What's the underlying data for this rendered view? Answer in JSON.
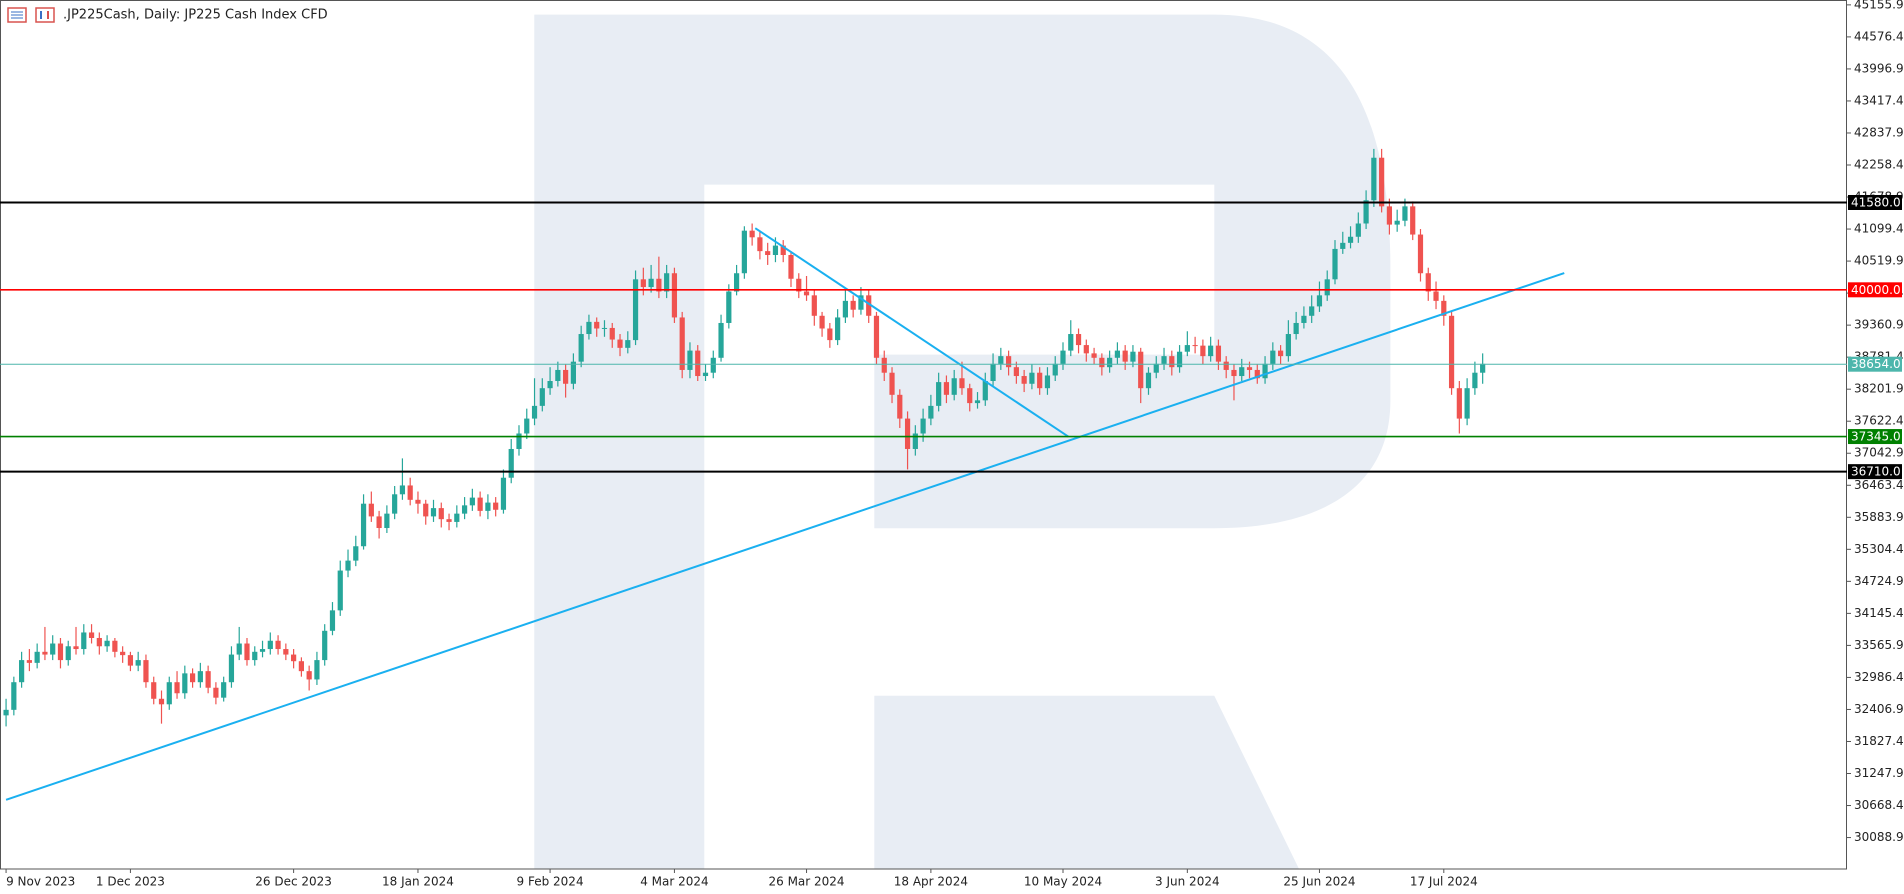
{
  "chart_data": {
    "type": "candlestick",
    "title": ".JP225Cash, Daily:  JP225 Cash Index CFD",
    "up_color": "#26a69a",
    "down_color": "#ef5350",
    "trend_color": "#1ab0f0",
    "ylim": [
      29520,
      45244
    ],
    "yticks": [
      45155.9,
      44576.4,
      43996.9,
      43417.4,
      42837.9,
      42258.4,
      41678.9,
      41099.4,
      40519.9,
      39940.4,
      39360.9,
      38781.4,
      38201.9,
      37622.4,
      37042.9,
      36463.4,
      35883.9,
      35304.4,
      34724.9,
      34145.4,
      33565.9,
      32986.4,
      32406.9,
      31827.4,
      31247.9,
      30668.4,
      30088.9
    ],
    "levels": [
      {
        "value": 41580,
        "label": "41580.0",
        "color": "#000000"
      },
      {
        "value": 40000,
        "label": "40000.0",
        "color": "#ff0000"
      },
      {
        "value": 38654,
        "label": "38654.0",
        "color": "#4db6ac"
      },
      {
        "value": 37345,
        "label": "37345.0",
        "color": "#008000"
      },
      {
        "value": 36710,
        "label": "36710.0",
        "color": "#000000"
      }
    ],
    "trendlines": [
      [
        [
          0,
          30772
        ],
        [
          200.5,
          40303
        ]
      ],
      [
        [
          96.4,
          41115
        ],
        [
          136.7,
          37343
        ]
      ]
    ],
    "categories": [
      "9 Nov 2023",
      null,
      null,
      null,
      null,
      null,
      null,
      null,
      null,
      null,
      null,
      null,
      null,
      null,
      null,
      null,
      "1 Dec 2023",
      null,
      null,
      null,
      null,
      null,
      null,
      null,
      null,
      null,
      null,
      null,
      null,
      null,
      null,
      null,
      null,
      null,
      null,
      null,
      null,
      "26 Dec 2023",
      null,
      null,
      null,
      null,
      null,
      null,
      null,
      null,
      null,
      null,
      null,
      null,
      null,
      null,
      null,
      "18 Jan 2024",
      null,
      null,
      null,
      null,
      null,
      null,
      null,
      null,
      null,
      null,
      null,
      null,
      null,
      null,
      null,
      null,
      "9 Feb 2024",
      null,
      null,
      null,
      null,
      null,
      null,
      null,
      null,
      null,
      null,
      null,
      null,
      null,
      null,
      null,
      "4 Mar 2024",
      null,
      null,
      null,
      null,
      null,
      null,
      null,
      null,
      null,
      null,
      null,
      null,
      null,
      null,
      null,
      null,
      "26 Mar 2024",
      null,
      null,
      null,
      null,
      null,
      null,
      null,
      null,
      null,
      null,
      null,
      null,
      null,
      null,
      null,
      "18 Apr 2024",
      null,
      null,
      null,
      null,
      null,
      null,
      null,
      null,
      null,
      null,
      null,
      null,
      null,
      null,
      null,
      null,
      "10 May 2024",
      null,
      null,
      null,
      null,
      null,
      null,
      null,
      null,
      null,
      null,
      null,
      null,
      null,
      null,
      null,
      "3 Jun 2024",
      null,
      null,
      null,
      null,
      null,
      null,
      null,
      null,
      null,
      null,
      null,
      null,
      null,
      null,
      null,
      null,
      "25 Jun 2024",
      null,
      null,
      null,
      null,
      null,
      null,
      null,
      null,
      null,
      null,
      null,
      null,
      null,
      null,
      null,
      "17 Jul 2024",
      null,
      null,
      null,
      null,
      null
    ],
    "ohlc": [
      [
        32300,
        32600,
        32100,
        32400
      ],
      [
        32400,
        33000,
        32300,
        32900
      ],
      [
        32900,
        33450,
        32800,
        33300
      ],
      [
        33300,
        33500,
        33100,
        33250
      ],
      [
        33250,
        33600,
        33150,
        33450
      ],
      [
        33450,
        33900,
        33300,
        33400
      ],
      [
        33400,
        33750,
        33300,
        33600
      ],
      [
        33600,
        33700,
        33150,
        33300
      ],
      [
        33300,
        33650,
        33200,
        33550
      ],
      [
        33550,
        33900,
        33400,
        33500
      ],
      [
        33500,
        33950,
        33400,
        33800
      ],
      [
        33800,
        33950,
        33600,
        33700
      ],
      [
        33700,
        33800,
        33400,
        33550
      ],
      [
        33550,
        33750,
        33450,
        33650
      ],
      [
        33650,
        33700,
        33350,
        33450
      ],
      [
        33450,
        33550,
        33250,
        33390
      ],
      [
        33390,
        33450,
        33100,
        33200
      ],
      [
        33200,
        33450,
        33100,
        33300
      ],
      [
        33300,
        33400,
        32800,
        32900
      ],
      [
        32900,
        33000,
        32500,
        32600
      ],
      [
        32600,
        32750,
        32150,
        32500
      ],
      [
        32500,
        33000,
        32400,
        32900
      ],
      [
        32900,
        33100,
        32600,
        32700
      ],
      [
        32700,
        33200,
        32600,
        33060
      ],
      [
        33060,
        33150,
        32800,
        32900
      ],
      [
        32900,
        33250,
        32800,
        33100
      ],
      [
        33100,
        33200,
        32700,
        32800
      ],
      [
        32800,
        32900,
        32500,
        32620
      ],
      [
        32620,
        33000,
        32550,
        32900
      ],
      [
        32900,
        33550,
        32800,
        33400
      ],
      [
        33400,
        33900,
        33300,
        33600
      ],
      [
        33600,
        33700,
        33200,
        33300
      ],
      [
        33300,
        33550,
        33200,
        33450
      ],
      [
        33450,
        33650,
        33350,
        33500
      ],
      [
        33500,
        33800,
        33400,
        33650
      ],
      [
        33650,
        33750,
        33400,
        33500
      ],
      [
        33500,
        33600,
        33300,
        33400
      ],
      [
        33400,
        33500,
        33150,
        33280
      ],
      [
        33280,
        33350,
        33000,
        33100
      ],
      [
        33100,
        33200,
        32750,
        32950
      ],
      [
        32950,
        33450,
        32850,
        33300
      ],
      [
        33300,
        33950,
        33200,
        33830
      ],
      [
        33830,
        34350,
        33750,
        34200
      ],
      [
        34200,
        35100,
        34100,
        34920
      ],
      [
        34920,
        35300,
        34800,
        35100
      ],
      [
        35100,
        35550,
        35000,
        35360
      ],
      [
        35360,
        36300,
        35300,
        36130
      ],
      [
        36130,
        36350,
        35800,
        35900
      ],
      [
        35900,
        36000,
        35500,
        35690
      ],
      [
        35690,
        36100,
        35600,
        35950
      ],
      [
        35950,
        36450,
        35850,
        36300
      ],
      [
        36300,
        36950,
        36200,
        36460
      ],
      [
        36460,
        36600,
        36100,
        36200
      ],
      [
        36200,
        36350,
        35950,
        36130
      ],
      [
        36130,
        36200,
        35750,
        35900
      ],
      [
        35900,
        36200,
        35800,
        36050
      ],
      [
        36050,
        36150,
        35700,
        35850
      ],
      [
        35850,
        35950,
        35650,
        35800
      ],
      [
        35800,
        36100,
        35700,
        35950
      ],
      [
        35950,
        36250,
        35850,
        36100
      ],
      [
        36100,
        36400,
        36000,
        36240
      ],
      [
        36240,
        36350,
        35900,
        36000
      ],
      [
        36000,
        36300,
        35850,
        36150
      ],
      [
        36150,
        36250,
        35900,
        36020
      ],
      [
        36020,
        36750,
        35950,
        36600
      ],
      [
        36600,
        37300,
        36500,
        37120
      ],
      [
        37120,
        37550,
        37000,
        37400
      ],
      [
        37400,
        37850,
        37300,
        37670
      ],
      [
        37670,
        38400,
        37550,
        37900
      ],
      [
        37900,
        38400,
        37800,
        38220
      ],
      [
        38220,
        38600,
        38100,
        38350
      ],
      [
        38350,
        38700,
        38250,
        38550
      ],
      [
        38550,
        38650,
        38050,
        38300
      ],
      [
        38300,
        38850,
        38200,
        38700
      ],
      [
        38700,
        39350,
        38600,
        39200
      ],
      [
        39200,
        39550,
        39100,
        39420
      ],
      [
        39420,
        39500,
        39150,
        39300
      ],
      [
        39300,
        39450,
        39150,
        39310
      ],
      [
        39310,
        39400,
        38950,
        39100
      ],
      [
        39100,
        39200,
        38800,
        38950
      ],
      [
        38950,
        39250,
        38850,
        39090
      ],
      [
        39090,
        40350,
        39000,
        40190
      ],
      [
        40190,
        40400,
        39900,
        40050
      ],
      [
        40050,
        40450,
        39950,
        40200
      ],
      [
        40200,
        40600,
        39850,
        39970
      ],
      [
        39970,
        40450,
        39850,
        40300
      ],
      [
        40300,
        40400,
        39400,
        39500
      ],
      [
        39500,
        39600,
        38400,
        38550
      ],
      [
        38550,
        39050,
        38400,
        38900
      ],
      [
        38900,
        39000,
        38350,
        38440
      ],
      [
        38440,
        38650,
        38350,
        38500
      ],
      [
        38500,
        38900,
        38400,
        38770
      ],
      [
        38770,
        39550,
        38700,
        39400
      ],
      [
        39400,
        40100,
        39300,
        39970
      ],
      [
        39970,
        40450,
        39900,
        40300
      ],
      [
        40300,
        41150,
        40200,
        41070
      ],
      [
        41070,
        41200,
        40800,
        40950
      ],
      [
        40950,
        41050,
        40550,
        40700
      ],
      [
        40700,
        40850,
        40450,
        40630
      ],
      [
        40630,
        40950,
        40500,
        40800
      ],
      [
        40800,
        40900,
        40500,
        40630
      ],
      [
        40630,
        40700,
        40050,
        40200
      ],
      [
        40200,
        40300,
        39850,
        39970
      ],
      [
        39970,
        40250,
        39800,
        39900
      ],
      [
        39900,
        40000,
        39350,
        39530
      ],
      [
        39530,
        39600,
        39150,
        39300
      ],
      [
        39300,
        39400,
        38950,
        39090
      ],
      [
        39090,
        39650,
        39000,
        39500
      ],
      [
        39500,
        40000,
        39400,
        39800
      ],
      [
        39800,
        39900,
        39500,
        39640
      ],
      [
        39640,
        40050,
        39550,
        39900
      ],
      [
        39900,
        40000,
        39400,
        39530
      ],
      [
        39530,
        39600,
        38650,
        38770
      ],
      [
        38770,
        38900,
        38350,
        38500
      ],
      [
        38500,
        38600,
        37950,
        38100
      ],
      [
        38100,
        38200,
        37500,
        37670
      ],
      [
        37670,
        37800,
        36750,
        37120
      ],
      [
        37120,
        37550,
        37000,
        37400
      ],
      [
        37400,
        37850,
        37250,
        37670
      ],
      [
        37670,
        38100,
        37550,
        37900
      ],
      [
        37900,
        38500,
        37800,
        38330
      ],
      [
        38330,
        38450,
        37950,
        38100
      ],
      [
        38100,
        38550,
        38000,
        38400
      ],
      [
        38400,
        38700,
        38100,
        38220
      ],
      [
        38220,
        38300,
        37800,
        37950
      ],
      [
        37950,
        38150,
        37850,
        38000
      ],
      [
        38000,
        38500,
        37900,
        38350
      ],
      [
        38350,
        38850,
        38250,
        38660
      ],
      [
        38660,
        38950,
        38550,
        38800
      ],
      [
        38800,
        38900,
        38450,
        38600
      ],
      [
        38600,
        38700,
        38300,
        38440
      ],
      [
        38440,
        38550,
        38150,
        38300
      ],
      [
        38300,
        38650,
        38200,
        38500
      ],
      [
        38500,
        38600,
        38100,
        38220
      ],
      [
        38220,
        38600,
        38100,
        38450
      ],
      [
        38450,
        38800,
        38350,
        38660
      ],
      [
        38660,
        39050,
        38550,
        38900
      ],
      [
        38900,
        39450,
        38800,
        39200
      ],
      [
        39200,
        39300,
        38850,
        39000
      ],
      [
        39000,
        39100,
        38700,
        38850
      ],
      [
        38850,
        38950,
        38650,
        38770
      ],
      [
        38770,
        38850,
        38450,
        38600
      ],
      [
        38600,
        38900,
        38500,
        38770
      ],
      [
        38770,
        39050,
        38650,
        38900
      ],
      [
        38900,
        39000,
        38550,
        38700
      ],
      [
        38700,
        39000,
        38600,
        38880
      ],
      [
        38880,
        38950,
        37950,
        38220
      ],
      [
        38220,
        38600,
        38100,
        38500
      ],
      [
        38500,
        38800,
        38400,
        38660
      ],
      [
        38660,
        38950,
        38550,
        38800
      ],
      [
        38800,
        38900,
        38450,
        38600
      ],
      [
        38600,
        39000,
        38500,
        38880
      ],
      [
        38880,
        39250,
        38800,
        39000
      ],
      [
        39000,
        39150,
        38850,
        38990
      ],
      [
        38990,
        39100,
        38650,
        38800
      ],
      [
        38800,
        39150,
        38700,
        38990
      ],
      [
        38990,
        39100,
        38550,
        38700
      ],
      [
        38700,
        38800,
        38400,
        38550
      ],
      [
        38550,
        38650,
        38000,
        38440
      ],
      [
        38440,
        38750,
        38350,
        38600
      ],
      [
        38600,
        38700,
        38400,
        38550
      ],
      [
        38550,
        38650,
        38300,
        38400
      ],
      [
        38400,
        38800,
        38300,
        38660
      ],
      [
        38660,
        39050,
        38550,
        38900
      ],
      [
        38900,
        39000,
        38650,
        38800
      ],
      [
        38800,
        39450,
        38700,
        39200
      ],
      [
        39200,
        39600,
        39100,
        39400
      ],
      [
        39400,
        39700,
        39300,
        39530
      ],
      [
        39530,
        39900,
        39400,
        39700
      ],
      [
        39700,
        40150,
        39600,
        39900
      ],
      [
        39900,
        40350,
        39800,
        40190
      ],
      [
        40190,
        40900,
        40100,
        40740
      ],
      [
        40740,
        41050,
        40650,
        40850
      ],
      [
        40850,
        41150,
        40750,
        40960
      ],
      [
        40960,
        41400,
        40850,
        41200
      ],
      [
        41200,
        41800,
        41100,
        41620
      ],
      [
        41620,
        42550,
        41500,
        42390
      ],
      [
        42390,
        42550,
        41400,
        41510
      ],
      [
        41510,
        41650,
        41000,
        41180
      ],
      [
        41180,
        41450,
        41050,
        41250
      ],
      [
        41250,
        41650,
        41150,
        41510
      ],
      [
        41510,
        41600,
        40900,
        41000
      ],
      [
        41000,
        41100,
        40150,
        40300
      ],
      [
        40300,
        40400,
        39800,
        39970
      ],
      [
        39970,
        40150,
        39650,
        39800
      ],
      [
        39800,
        39900,
        39350,
        39530
      ],
      [
        39530,
        39600,
        38100,
        38220
      ],
      [
        38220,
        38350,
        37400,
        37670
      ],
      [
        37670,
        38400,
        37550,
        38220
      ],
      [
        38220,
        38700,
        38100,
        38500
      ],
      [
        38500,
        38850,
        38300,
        38660
      ]
    ]
  }
}
